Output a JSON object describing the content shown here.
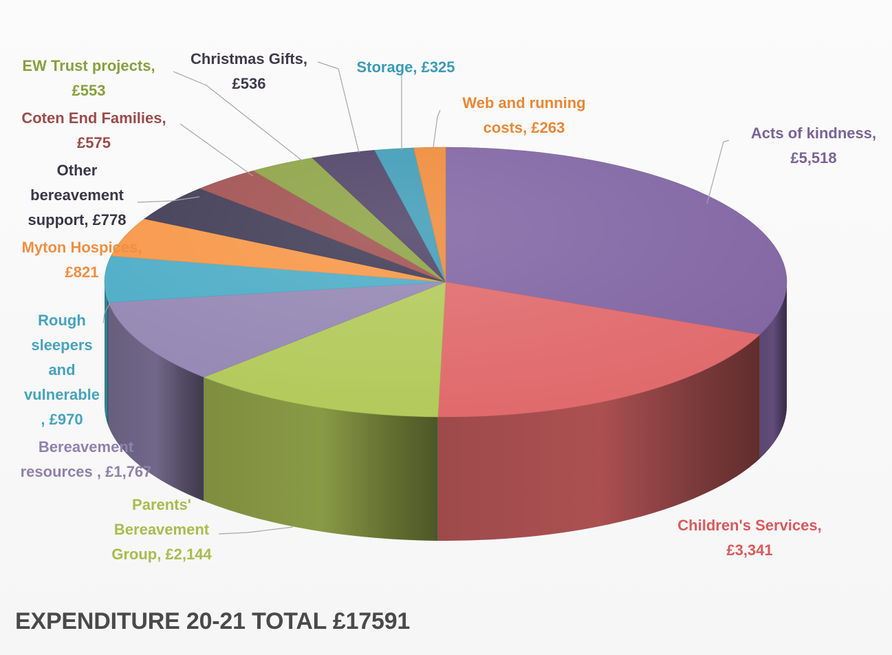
{
  "chart_data": {
    "type": "pie",
    "title": "EXPENDITURE 20-21 TOTAL £17591",
    "slices": [
      {
        "name": "Acts of kindness",
        "value": 5518,
        "label_lines": [
          "Acts of kindness,",
          "£5,518"
        ],
        "color": "#8064a2",
        "label_color": "#7a6398"
      },
      {
        "name": "Children's Services",
        "value": 3341,
        "label_lines": [
          "Children's Services,",
          "£3,341"
        ],
        "color": "#e0696b",
        "label_color": "#d9595b"
      },
      {
        "name": "Parents' Bereavement Group",
        "value": 2144,
        "label_lines": [
          "Parents'",
          "Bereavement",
          "Group, £2,144"
        ],
        "color": "#b3c95a",
        "label_color": "#a7bc4f"
      },
      {
        "name": "Bereavement resources",
        "value": 1767,
        "label_lines": [
          "Bereavement",
          "resources , £1,767"
        ],
        "color": "#9487b4",
        "label_color": "#8e82ad"
      },
      {
        "name": "Rough sleepers and vulnerable",
        "value": 970,
        "label_lines": [
          "Rough",
          "sleepers",
          "and",
          "vulnerable",
          ", £970"
        ],
        "color": "#4bacc6",
        "label_color": "#46a3bc"
      },
      {
        "name": "Myton Hospices",
        "value": 821,
        "label_lines": [
          "Myton Hospices,",
          "£821"
        ],
        "color": "#f79646",
        "label_color": "#f08e43"
      },
      {
        "name": "Other bereavement support",
        "value": 778,
        "label_lines": [
          "Other",
          "bereavement",
          "support, £778"
        ],
        "color": "#3e3a54",
        "label_color": "#3a3646"
      },
      {
        "name": "Coten End Families",
        "value": 575,
        "label_lines": [
          "Coten End Families,",
          "£575"
        ],
        "color": "#a0504f",
        "label_color": "#9a4c4a"
      },
      {
        "name": "EW Trust projects",
        "value": 553,
        "label_lines": [
          "EW Trust projects,",
          "£553"
        ],
        "color": "#8da244",
        "label_color": "#86a03f"
      },
      {
        "name": "Christmas Gifts",
        "value": 536,
        "label_lines": [
          "Christmas Gifts,",
          "£536"
        ],
        "color": "#4e4266",
        "label_color": "#3f3a4c"
      },
      {
        "name": "Storage",
        "value": 325,
        "label_lines": [
          "Storage, £325"
        ],
        "color": "#3f9bb7",
        "label_color": "#3c9ab5"
      },
      {
        "name": "Web and running costs",
        "value": 263,
        "label_lines": [
          "Web and running",
          "costs, £263"
        ],
        "color": "#ee8a3a",
        "label_color": "#ea8635"
      }
    ],
    "legend": "none",
    "grid": false
  }
}
